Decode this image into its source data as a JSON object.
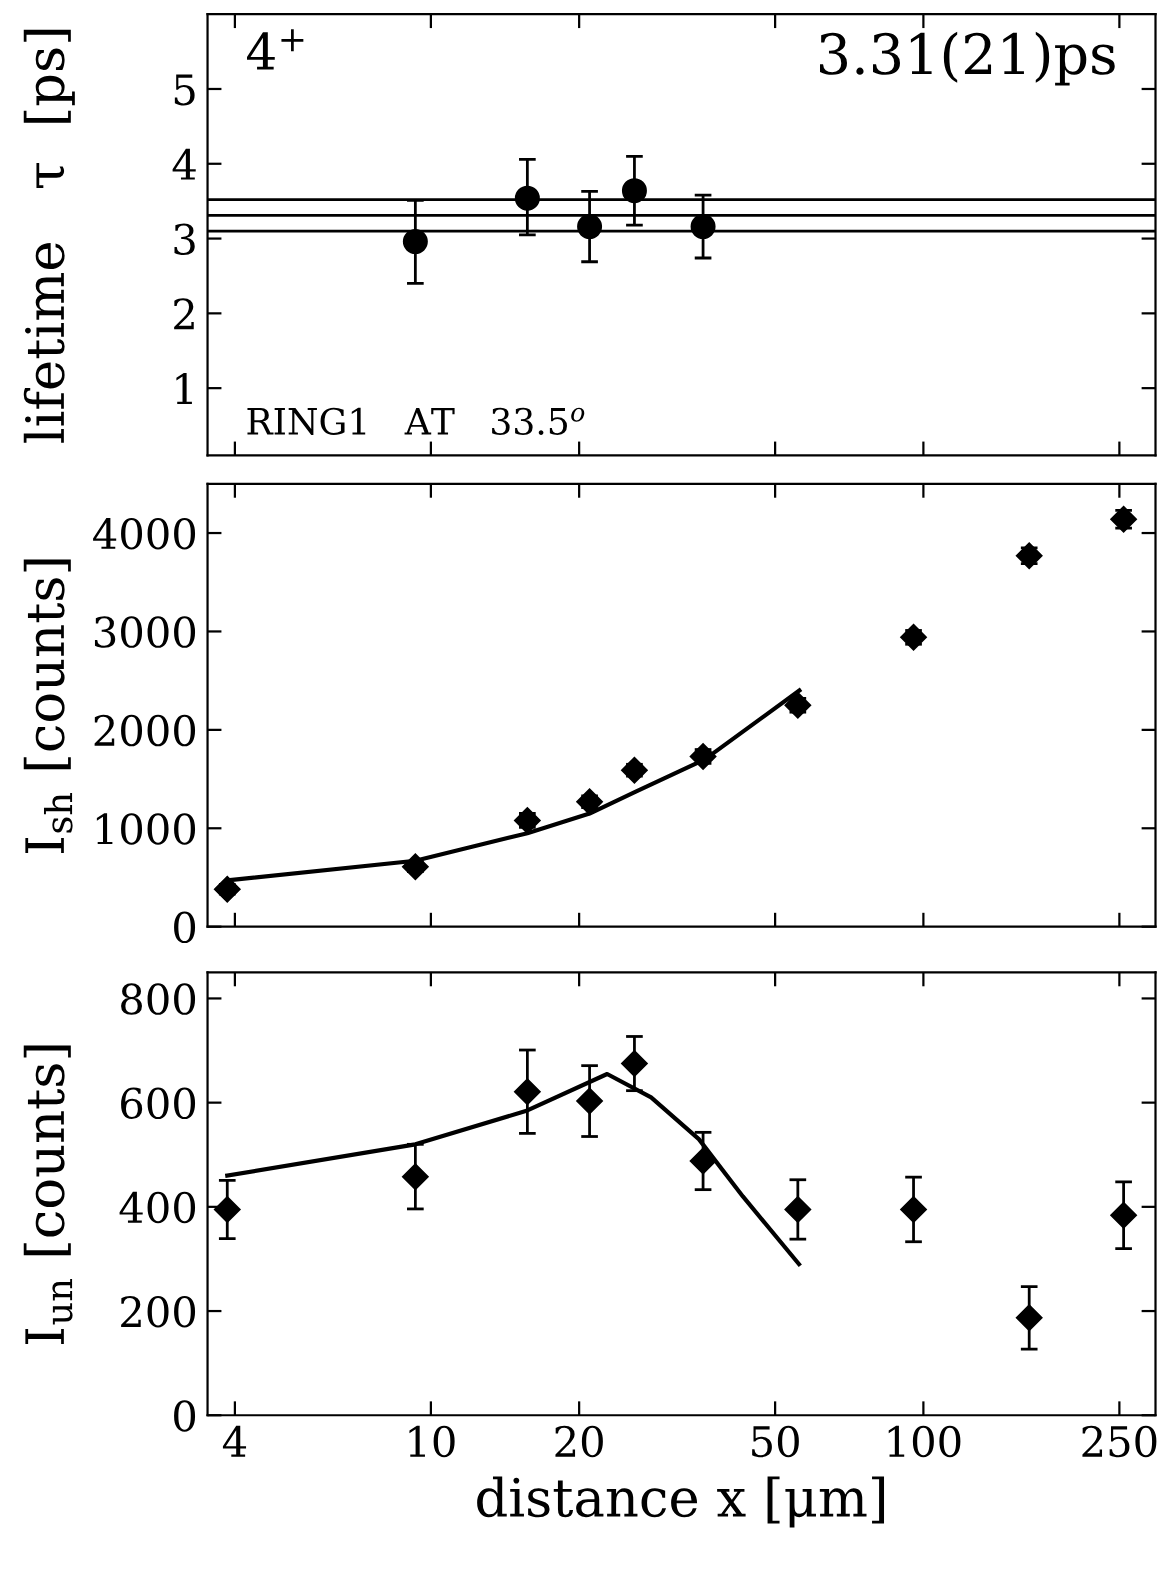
{
  "chart_data": [
    {
      "type": "scatter",
      "ylabel": "lifetime   τ  [ps]",
      "log": "x",
      "xlim": [
        3.52,
        296
      ],
      "xticks": [
        4,
        10,
        20,
        50,
        100,
        250
      ],
      "ylim": [
        0.1,
        6
      ],
      "yticks": [
        1,
        2,
        3,
        4,
        5
      ],
      "tick_labels": "y",
      "grid": false,
      "annotations": [
        "4$^{+}$",
        "3.31(21)ps",
        "RING1   AT   33.5$^{o}$"
      ],
      "ref_lines": [
        {
          "axis": "y",
          "value": 3.52,
          "color": "#000000"
        },
        {
          "axis": "y",
          "value": 3.31,
          "color": "#000000"
        },
        {
          "axis": "y",
          "value": 3.1,
          "color": "#000000"
        }
      ],
      "series": [
        {
          "color": "#000000",
          "marker": "circle",
          "x": [
            9.3,
            15.7,
            21.0,
            25.9,
            35.7
          ],
          "values": [
            2.96,
            3.54,
            3.16,
            3.64,
            3.16
          ],
          "errors": [
            [
              2.4,
              3.51
            ],
            [
              3.05,
              4.06
            ],
            [
              2.69,
              3.63
            ],
            [
              3.18,
              4.1
            ],
            [
              2.74,
              3.58
            ]
          ]
        }
      ]
    },
    {
      "type": "scatter",
      "ylabel": "I$_{sh}$ [counts]",
      "log": "x",
      "xlim": [
        3.52,
        296
      ],
      "xticks": [
        4,
        10,
        20,
        50,
        100,
        250
      ],
      "ylim": [
        0,
        4500
      ],
      "yticks": [
        0,
        1000,
        2000,
        3000,
        4000
      ],
      "tick_labels": "y",
      "grid": false,
      "series": [
        {
          "color": "#000000",
          "marker": "diamond",
          "x": [
            3.86,
            9.3,
            15.7,
            21.0,
            25.9,
            35.7,
            55.6,
            95.5,
            164,
            255
          ],
          "values": [
            380,
            610,
            1080,
            1270,
            1590,
            1730,
            2250,
            2940,
            3770,
            4140
          ],
          "errors": [
            50,
            50,
            70,
            60,
            60,
            70,
            70,
            70,
            80,
            90
          ]
        },
        {
          "type": "line",
          "color": "#000000",
          "marker": "none",
          "line_style": "solid",
          "x": [
            3.86,
            9.3,
            15.7,
            21.0,
            26.0,
            36.0,
            56.0
          ],
          "values": [
            470,
            670,
            950,
            1150,
            1370,
            1700,
            2400
          ]
        }
      ]
    },
    {
      "type": "scatter",
      "xlabel": "distance x [μm]",
      "ylabel": "I$_{un}$ [counts]",
      "log": "x",
      "xlim": [
        3.52,
        296
      ],
      "xticks": [
        4,
        10,
        20,
        50,
        100,
        250
      ],
      "ylim": [
        0,
        850
      ],
      "yticks": [
        0,
        200,
        400,
        600,
        800
      ],
      "grid": false,
      "series": [
        {
          "color": "#000000",
          "marker": "diamond",
          "x": [
            3.86,
            9.3,
            15.7,
            21.0,
            25.9,
            35.7,
            55.6,
            95.5,
            164,
            255
          ],
          "values": [
            395,
            458,
            621,
            603,
            675,
            488,
            395,
            395,
            187,
            384
          ],
          "errors": [
            56,
            62,
            80,
            68,
            52,
            55,
            57,
            62,
            60,
            64
          ]
        },
        {
          "type": "line",
          "color": "#000000",
          "marker": "none",
          "line_style": "solid",
          "x": [
            3.86,
            9.3,
            15.7,
            22.8,
            28.0,
            35.0,
            43.0,
            55.9
          ],
          "values": [
            460,
            520,
            585,
            655,
            610,
            530,
            420,
            290
          ]
        }
      ]
    }
  ]
}
